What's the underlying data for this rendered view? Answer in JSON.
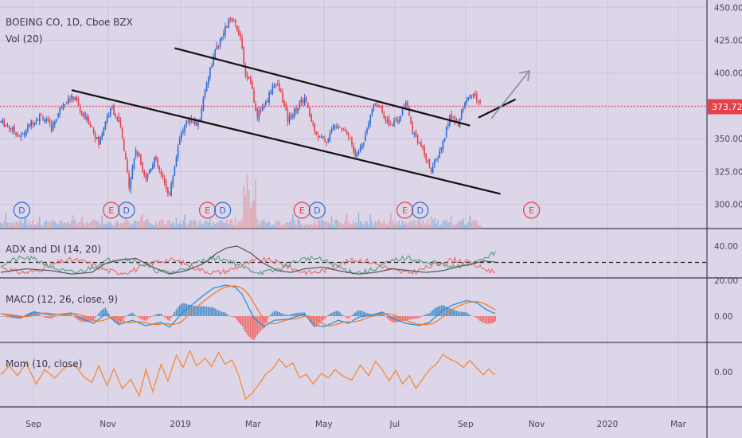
{
  "header": {
    "symbol_label": "BOEING CO, 1D, Cboe BZX",
    "volume_label": "Vol (20)"
  },
  "panes": {
    "adx_label": "ADX and DI (14, 20)",
    "macd_label": "MACD (12, 26, close, 9)",
    "mom_label": "Mom (10, close)"
  },
  "colors": {
    "background": "#dcd6e8",
    "up": "#2a6bd6",
    "down": "#e8404a",
    "price_line": "#e8404a",
    "trendline": "#111111",
    "event": "#e8404a",
    "dividend": "#2a6bd6",
    "macd": "#2b8fd8",
    "signal": "#f07c2a",
    "mom": "#f28a3a",
    "adx": "#555555",
    "di_plus": "#5a9b7a",
    "di_minus": "#e86a6a",
    "arrow": "#8b8fb8"
  },
  "chart_data": {
    "type": "candlestick",
    "title": "BOEING CO, 1D, Cboe BZX",
    "current_price": 373.72,
    "ylim": [
      287,
      452
    ],
    "y_ticks": [
      {
        "value": 450,
        "label": "450.00"
      },
      {
        "value": 425,
        "label": "425.00"
      },
      {
        "value": 400,
        "label": "400.00"
      },
      {
        "value": 350,
        "label": "350.00"
      },
      {
        "value": 325,
        "label": "325.00"
      },
      {
        "value": 300,
        "label": "300.00"
      }
    ],
    "x_ticks": [
      {
        "index": 10,
        "label": "Sep"
      },
      {
        "index": 54,
        "label": "Nov"
      },
      {
        "index": 97,
        "label": "2019"
      },
      {
        "index": 140,
        "label": "Mar"
      },
      {
        "index": 182,
        "label": "May"
      },
      {
        "index": 224,
        "label": "Jul"
      },
      {
        "index": 266,
        "label": "Sep"
      },
      {
        "index": 308,
        "label": "Nov"
      },
      {
        "index": 350,
        "label": "2020"
      },
      {
        "index": 392,
        "label": "Mar"
      }
    ],
    "bar_count": 285,
    "events": [
      {
        "type": "D",
        "index": 3
      },
      {
        "type": "E",
        "index": 56
      },
      {
        "type": "D",
        "index": 65
      },
      {
        "type": "E",
        "index": 113
      },
      {
        "type": "D",
        "index": 122
      },
      {
        "type": "E",
        "index": 169
      },
      {
        "type": "D",
        "index": 178
      },
      {
        "type": "E",
        "index": 230
      },
      {
        "type": "D",
        "index": 239
      },
      {
        "type": "E",
        "index": 305
      }
    ],
    "trendlines": [
      {
        "x1": 42,
        "y1": 387,
        "x2": 296,
        "y2": 308
      },
      {
        "x1": 103,
        "y1": 419,
        "x2": 278,
        "y2": 360
      },
      {
        "x1": 283,
        "y1": 366,
        "x2": 305,
        "y2": 380
      }
    ],
    "anchors": [
      [
        0,
        363
      ],
      [
        6,
        358
      ],
      [
        12,
        351
      ],
      [
        18,
        362
      ],
      [
        24,
        368
      ],
      [
        30,
        358
      ],
      [
        37,
        378
      ],
      [
        44,
        382
      ],
      [
        48,
        368
      ],
      [
        53,
        362
      ],
      [
        58,
        346
      ],
      [
        62,
        364
      ],
      [
        66,
        374
      ],
      [
        71,
        358
      ],
      [
        76,
        315
      ],
      [
        80,
        342
      ],
      [
        86,
        320
      ],
      [
        91,
        335
      ],
      [
        95,
        322
      ],
      [
        100,
        307
      ],
      [
        106,
        352
      ],
      [
        112,
        366
      ],
      [
        117,
        360
      ],
      [
        122,
        394
      ],
      [
        127,
        416
      ],
      [
        131,
        427
      ],
      [
        135,
        440
      ],
      [
        139,
        437
      ],
      [
        142,
        428
      ],
      [
        145,
        400
      ],
      [
        148,
        392
      ],
      [
        152,
        368
      ],
      [
        157,
        377
      ],
      [
        162,
        393
      ],
      [
        166,
        385
      ],
      [
        170,
        364
      ],
      [
        175,
        373
      ],
      [
        180,
        381
      ],
      [
        184,
        363
      ],
      [
        188,
        352
      ],
      [
        193,
        348
      ],
      [
        198,
        362
      ],
      [
        203,
        358
      ],
      [
        207,
        350
      ],
      [
        210,
        336
      ],
      [
        215,
        348
      ],
      [
        220,
        375
      ],
      [
        225,
        374
      ],
      [
        230,
        360
      ],
      [
        235,
        363
      ],
      [
        240,
        378
      ],
      [
        244,
        356
      ],
      [
        248,
        347
      ],
      [
        252,
        335
      ],
      [
        255,
        327
      ],
      [
        258,
        333
      ],
      [
        262,
        347
      ],
      [
        266,
        367
      ],
      [
        271,
        362
      ],
      [
        276,
        381
      ],
      [
        280,
        384
      ],
      [
        284,
        376
      ],
      [
        287,
        369
      ],
      [
        289,
        365
      ],
      [
        292,
        372
      ]
    ],
    "macd_anchors": [
      [
        0,
        1.2
      ],
      [
        12,
        -0.8
      ],
      [
        20,
        2
      ],
      [
        30,
        0.5
      ],
      [
        42,
        1.5
      ],
      [
        48,
        -1.2
      ],
      [
        55,
        -3.5
      ],
      [
        62,
        1
      ],
      [
        70,
        -4
      ],
      [
        78,
        -2
      ],
      [
        86,
        -4.6
      ],
      [
        95,
        -3
      ],
      [
        100,
        -5.3
      ],
      [
        108,
        2
      ],
      [
        114,
        6
      ],
      [
        120,
        10
      ],
      [
        126,
        13.5
      ],
      [
        133,
        15
      ],
      [
        139,
        14
      ],
      [
        143,
        10.5
      ],
      [
        150,
        -1
      ],
      [
        156,
        -5
      ],
      [
        162,
        -2
      ],
      [
        170,
        -1.5
      ],
      [
        180,
        1
      ],
      [
        186,
        -4.5
      ],
      [
        192,
        -5
      ],
      [
        200,
        -2
      ],
      [
        206,
        -3.5
      ],
      [
        212,
        -0.5
      ],
      [
        220,
        0.5
      ],
      [
        226,
        2
      ],
      [
        232,
        -1
      ],
      [
        240,
        -3.5
      ],
      [
        248,
        -4.5
      ],
      [
        254,
        -3
      ],
      [
        262,
        3
      ],
      [
        268,
        5.5
      ],
      [
        276,
        7.5
      ],
      [
        282,
        6.5
      ],
      [
        288,
        3
      ],
      [
        292,
        1.5
      ]
    ],
    "mom_anchors": [
      [
        0,
        -4
      ],
      [
        5,
        8
      ],
      [
        10,
        -5
      ],
      [
        15,
        12
      ],
      [
        21,
        -16
      ],
      [
        26,
        3
      ],
      [
        32,
        -8
      ],
      [
        38,
        6
      ],
      [
        44,
        9
      ],
      [
        49,
        -6
      ],
      [
        54,
        -14
      ],
      [
        58,
        8
      ],
      [
        63,
        -18
      ],
      [
        67,
        4
      ],
      [
        72,
        -22
      ],
      [
        77,
        -10
      ],
      [
        82,
        -32
      ],
      [
        86,
        3
      ],
      [
        90,
        -26
      ],
      [
        95,
        10
      ],
      [
        99,
        -12
      ],
      [
        104,
        22
      ],
      [
        108,
        6
      ],
      [
        112,
        28
      ],
      [
        116,
        8
      ],
      [
        121,
        18
      ],
      [
        125,
        7
      ],
      [
        129,
        26
      ],
      [
        133,
        10
      ],
      [
        137,
        16
      ],
      [
        141,
        -5
      ],
      [
        145,
        -36
      ],
      [
        149,
        -28
      ],
      [
        153,
        -16
      ],
      [
        157,
        -3
      ],
      [
        161,
        4
      ],
      [
        165,
        17
      ],
      [
        169,
        6
      ],
      [
        173,
        12
      ],
      [
        177,
        -8
      ],
      [
        181,
        -3
      ],
      [
        185,
        -16
      ],
      [
        190,
        -2
      ],
      [
        194,
        -8
      ],
      [
        198,
        3
      ],
      [
        203,
        -6
      ],
      [
        208,
        -11
      ],
      [
        213,
        9
      ],
      [
        218,
        -5
      ],
      [
        222,
        14
      ],
      [
        226,
        3
      ],
      [
        230,
        -12
      ],
      [
        234,
        2
      ],
      [
        238,
        -16
      ],
      [
        242,
        -5
      ],
      [
        246,
        -22
      ],
      [
        250,
        -9
      ],
      [
        254,
        3
      ],
      [
        258,
        10
      ],
      [
        262,
        23
      ],
      [
        266,
        17
      ],
      [
        270,
        13
      ],
      [
        274,
        6
      ],
      [
        278,
        15
      ],
      [
        282,
        5
      ],
      [
        286,
        -4
      ],
      [
        289,
        4
      ],
      [
        292,
        -3
      ]
    ],
    "adx_anchors": [
      [
        0,
        20
      ],
      [
        15,
        24
      ],
      [
        30,
        22
      ],
      [
        42,
        18
      ],
      [
        54,
        20
      ],
      [
        62,
        30
      ],
      [
        70,
        34
      ],
      [
        80,
        36
      ],
      [
        90,
        26
      ],
      [
        100,
        18
      ],
      [
        110,
        22
      ],
      [
        120,
        30
      ],
      [
        128,
        42
      ],
      [
        134,
        48
      ],
      [
        140,
        50
      ],
      [
        148,
        42
      ],
      [
        156,
        30
      ],
      [
        164,
        22
      ],
      [
        172,
        20
      ],
      [
        180,
        24
      ],
      [
        190,
        26
      ],
      [
        200,
        22
      ],
      [
        212,
        18
      ],
      [
        222,
        20
      ],
      [
        232,
        24
      ],
      [
        242,
        22
      ],
      [
        252,
        20
      ],
      [
        262,
        22
      ],
      [
        270,
        26
      ],
      [
        280,
        30
      ],
      [
        286,
        33
      ],
      [
        292,
        32
      ]
    ]
  }
}
